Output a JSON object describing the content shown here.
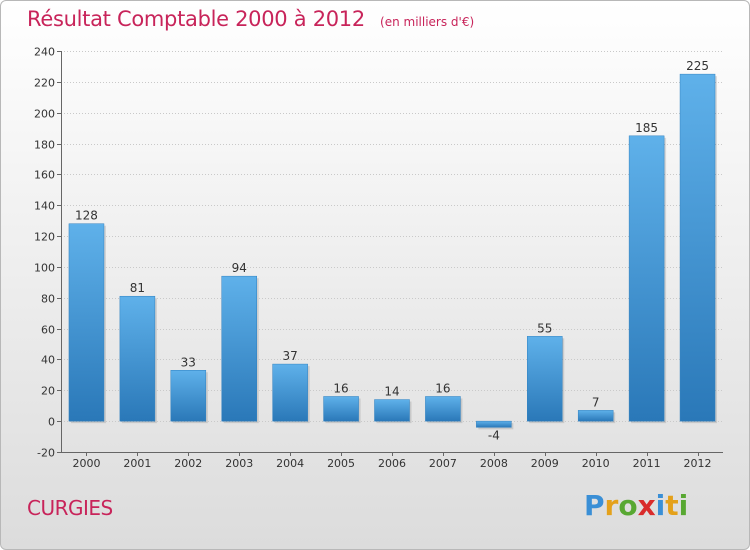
{
  "header": {
    "title": "Résultat Comptable 2000 à 2012",
    "unit": "(en milliers d'€)"
  },
  "footer": {
    "commune": "CURGIES",
    "logo_letters": [
      "P",
      "r",
      "o",
      "x",
      "i",
      "t",
      "i"
    ],
    "logo_colors": [
      "#3a8fd6",
      "#e4a11b",
      "#58a832",
      "#d92b2b",
      "#3a8fd6",
      "#e4a11b",
      "#58a832"
    ]
  },
  "colors": {
    "bar": "#3d96d8",
    "bar_light": "#5fb1ea",
    "bar_dark": "#2a78b8",
    "title": "#c8245a"
  },
  "chart_data": {
    "type": "bar",
    "title": "Résultat Comptable 2000 à 2012",
    "categories": [
      "2000",
      "2001",
      "2002",
      "2003",
      "2004",
      "2005",
      "2006",
      "2007",
      "2008",
      "2009",
      "2010",
      "2011",
      "2012"
    ],
    "values": [
      128,
      81,
      33,
      94,
      37,
      16,
      14,
      16,
      -4,
      55,
      7,
      185,
      225
    ],
    "ylim": [
      -20,
      240
    ],
    "yticks": [
      -20,
      0,
      20,
      40,
      60,
      80,
      100,
      120,
      140,
      160,
      180,
      200,
      220,
      240
    ],
    "grid": true
  }
}
